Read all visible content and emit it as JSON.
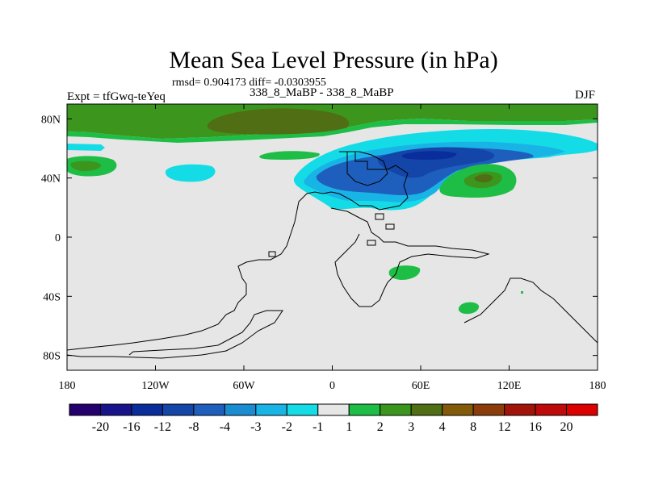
{
  "header": {
    "title": "Mean Sea Level Pressure (in hPa)",
    "stats": "rmsd= 0.904173 diff= -0.0303955",
    "diff_label": "338_8_MaBP - 338_8_MaBP",
    "expt_label": "Expt = tfGwq-teYeq",
    "season_label": "DJF"
  },
  "chart_data": {
    "type": "heatmap",
    "title": "Mean Sea Level Pressure (in hPa)",
    "xlabel": "",
    "ylabel": "",
    "xlim": [
      -180,
      180
    ],
    "ylim": [
      -90,
      90
    ],
    "x_ticks": [
      {
        "value": -180,
        "label": "180"
      },
      {
        "value": -120,
        "label": "120W"
      },
      {
        "value": -60,
        "label": "60W"
      },
      {
        "value": 0,
        "label": "0"
      },
      {
        "value": 60,
        "label": "60E"
      },
      {
        "value": 120,
        "label": "120E"
      },
      {
        "value": 180,
        "label": "180"
      }
    ],
    "y_ticks": [
      {
        "value": 80,
        "label": "80N"
      },
      {
        "value": 40,
        "label": "40N"
      },
      {
        "value": 0,
        "label": "0"
      },
      {
        "value": -40,
        "label": "40S"
      },
      {
        "value": -80,
        "label": "80S"
      }
    ],
    "colorbar": {
      "labels": [
        "-20",
        "-16",
        "-12",
        "-8",
        "-4",
        "-3",
        "-2",
        "-1",
        "1",
        "2",
        "3",
        "4",
        "8",
        "12",
        "16",
        "20"
      ],
      "colors": [
        "#24006e",
        "#19148c",
        "#0a2d9c",
        "#1446aa",
        "#1e5fbe",
        "#1a8cd2",
        "#19b4e6",
        "#14dce6",
        "#e6e6e6",
        "#1ebe46",
        "#3c961e",
        "#506e14",
        "#825a0a",
        "#8c3c0a",
        "#a0140a",
        "#be0a0a",
        "#dc0000"
      ]
    },
    "regions": [
      {
        "name": "arctic-positive",
        "value": 2,
        "lon": [
          -180,
          180
        ],
        "lat": [
          63,
          90
        ]
      },
      {
        "name": "arctic-positive-core",
        "value": 3,
        "lon": [
          -120,
          -30
        ],
        "lat": [
          72,
          87
        ]
      },
      {
        "name": "north-pacific-positive",
        "value": 3,
        "lon": [
          -180,
          -165
        ],
        "lat": [
          41,
          53
        ]
      },
      {
        "name": "north-pacific-negative",
        "value": -1,
        "lon": [
          -120,
          -100
        ],
        "lat": [
          40,
          48
        ]
      },
      {
        "name": "north-atlantic-eurasia-negative",
        "value": -3,
        "lon": [
          -25,
          165
        ],
        "lat": [
          20,
          72
        ]
      },
      {
        "name": "eurasia-negative-core",
        "value": -4,
        "lon": [
          55,
          100
        ],
        "lat": [
          32,
          62
        ]
      },
      {
        "name": "asia-positive",
        "value": 3,
        "lon": [
          85,
          120
        ],
        "lat": [
          30,
          50
        ]
      },
      {
        "name": "indian-ocean-positive",
        "value": 2,
        "lon": [
          38,
          60
        ],
        "lat": [
          -27,
          -18
        ]
      },
      {
        "name": "south-indian-positive",
        "value": 2,
        "lon": [
          85,
          100
        ],
        "lat": [
          -51,
          -44
        ]
      }
    ]
  }
}
